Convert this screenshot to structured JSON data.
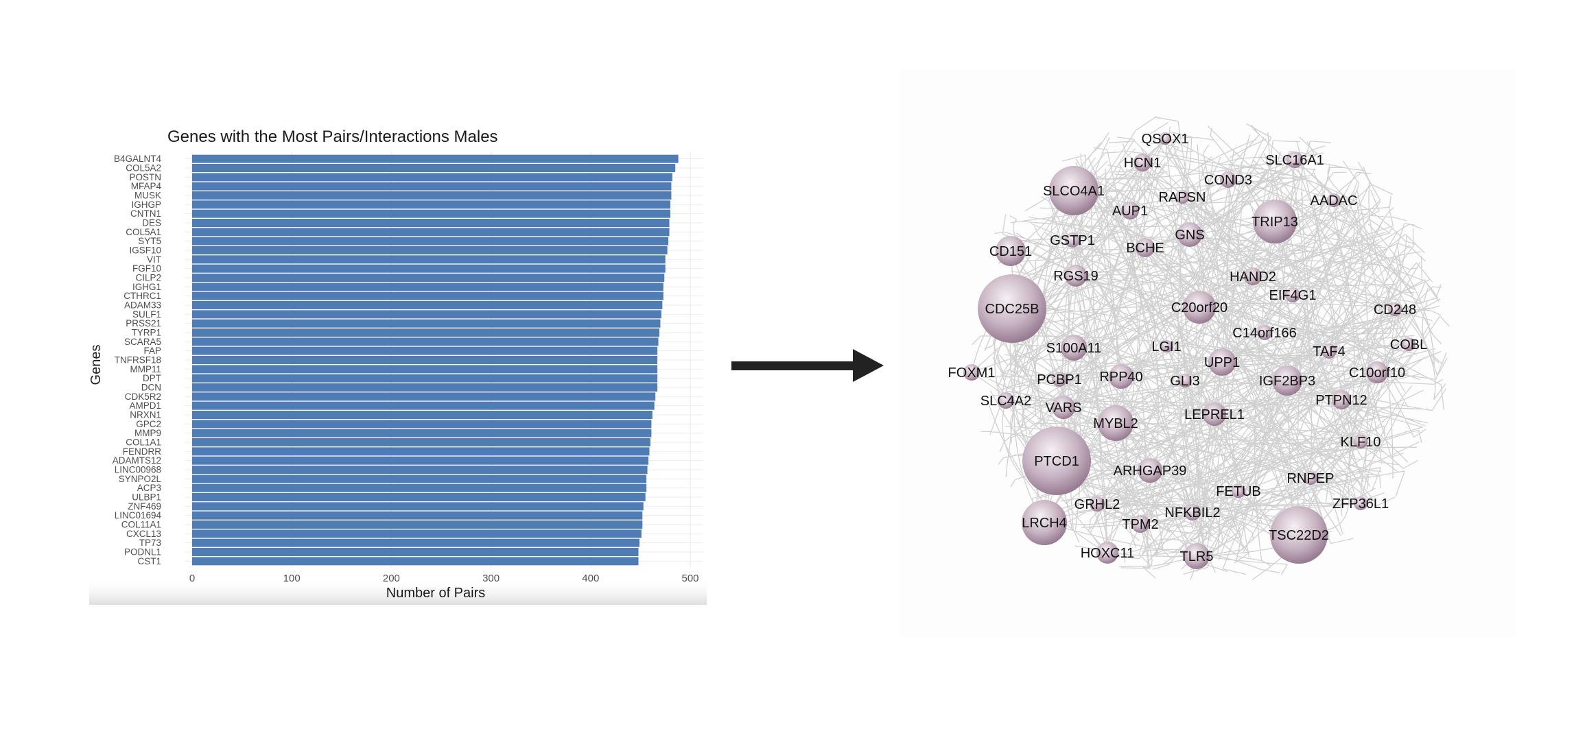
{
  "chart_data": [
    {
      "type": "bar",
      "orientation": "horizontal",
      "title": "Genes with the Most Pairs/Interactions Males",
      "xlabel": "Number of Pairs",
      "ylabel": "Genes",
      "xlim": [
        0,
        510
      ],
      "xticks": [
        0,
        100,
        200,
        300,
        400,
        500
      ],
      "grid": true,
      "bar_color": "#4f7cb3",
      "categories": [
        "B4GALNT4",
        "COL5A2",
        "POSTN",
        "MFAP4",
        "MUSK",
        "IGHGP",
        "CNTN1",
        "DES",
        "COL5A1",
        "SYT5",
        "IGSF10",
        "VIT",
        "FGF10",
        "CILP2",
        "IGHG1",
        "CTHRC1",
        "ADAM33",
        "SULF1",
        "PRSS21",
        "TYRP1",
        "SCARA5",
        "FAP",
        "TNFRSF18",
        "MMP11",
        "DPT",
        "DCN",
        "CDK5R2",
        "AMPD1",
        "NRXN1",
        "GPC2",
        "MMP9",
        "COL1A1",
        "FENDRR",
        "ADAMTS12",
        "LINC00968",
        "SYNPO2L",
        "ACP3",
        "ULBP1",
        "ZNF469",
        "LINC01694",
        "COL11A1",
        "CXCL13",
        "TP73",
        "PODNL1",
        "CST1"
      ],
      "values": [
        488,
        485,
        482,
        481,
        481,
        480,
        480,
        479,
        479,
        478,
        477,
        475,
        475,
        474,
        473,
        473,
        472,
        471,
        470,
        469,
        468,
        467,
        467,
        467,
        467,
        467,
        465,
        464,
        462,
        461,
        461,
        460,
        459,
        458,
        457,
        456,
        456,
        455,
        453,
        452,
        452,
        451,
        449,
        448,
        448
      ]
    },
    {
      "type": "network",
      "node_color": "#9e8498",
      "edge_color": "#c9c9c9",
      "nodes": [
        {
          "label": "QSOX1"
        },
        {
          "label": "HCN1"
        },
        {
          "label": "SLC16A1"
        },
        {
          "label": "COND3"
        },
        {
          "label": "SLCO4A1"
        },
        {
          "label": "RAPSN"
        },
        {
          "label": "AADAC"
        },
        {
          "label": "AUP1"
        },
        {
          "label": "TRIP13"
        },
        {
          "label": "GSTP1"
        },
        {
          "label": "GNS"
        },
        {
          "label": "CD151"
        },
        {
          "label": "BCHE"
        },
        {
          "label": "RGS19"
        },
        {
          "label": "HAND2"
        },
        {
          "label": "EIF4G1"
        },
        {
          "label": "CDC25B"
        },
        {
          "label": "C20orf20"
        },
        {
          "label": "CD248"
        },
        {
          "label": "C14orf166"
        },
        {
          "label": "S100A11"
        },
        {
          "label": "LGI1"
        },
        {
          "label": "COBL"
        },
        {
          "label": "TAF4"
        },
        {
          "label": "UPP1"
        },
        {
          "label": "FOXM1"
        },
        {
          "label": "PCBP1"
        },
        {
          "label": "RPP40"
        },
        {
          "label": "GLI3"
        },
        {
          "label": "IGF2BP3"
        },
        {
          "label": "C10orf10"
        },
        {
          "label": "SLC4A2"
        },
        {
          "label": "VARS"
        },
        {
          "label": "PTPN12"
        },
        {
          "label": "LEPREL1"
        },
        {
          "label": "MYBL2"
        },
        {
          "label": "KLF10"
        },
        {
          "label": "PTCD1"
        },
        {
          "label": "ARHGAP39"
        },
        {
          "label": "RNPEP"
        },
        {
          "label": "FETUB"
        },
        {
          "label": "GRHL2"
        },
        {
          "label": "ZFP36L1"
        },
        {
          "label": "NFKBIL2"
        },
        {
          "label": "LRCH4"
        },
        {
          "label": "TPM2"
        },
        {
          "label": "TSC22D2"
        },
        {
          "label": "HOXC11"
        },
        {
          "label": "TLR5"
        }
      ]
    }
  ]
}
